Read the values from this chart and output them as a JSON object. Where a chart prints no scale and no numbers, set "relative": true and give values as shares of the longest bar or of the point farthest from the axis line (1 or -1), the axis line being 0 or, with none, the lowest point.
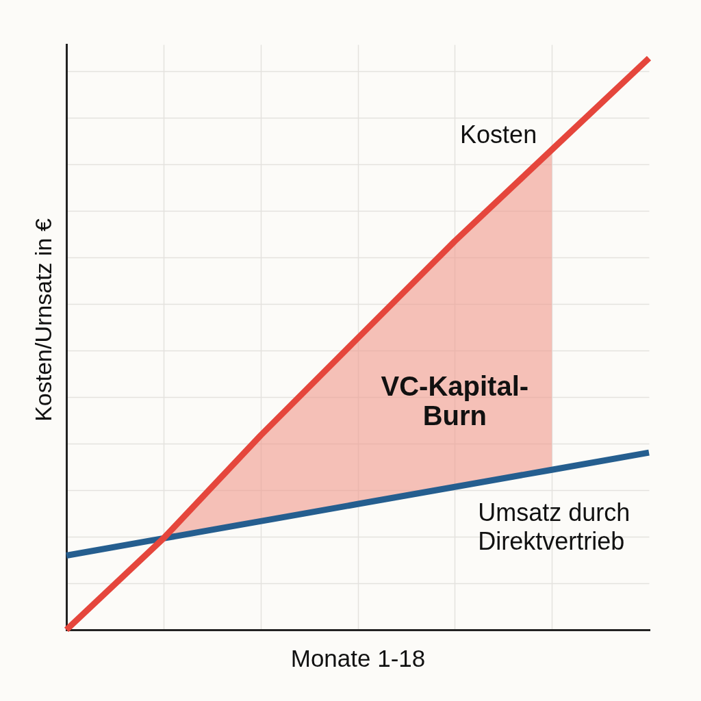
{
  "chart_data": {
    "type": "line",
    "xlabel": "Monate 1-18",
    "ylabel": "Kosten/Urnsatz in €",
    "relative": true,
    "grid": true,
    "categories": [
      null,
      null,
      null,
      null,
      null,
      null,
      null
    ],
    "series": [
      {
        "name": "Umsatz durch Direktvertrieb",
        "color": "#255e8f",
        "values": [
          0.13,
          0.16,
          0.19,
          0.22,
          0.25,
          0.28,
          0.31
        ]
      },
      {
        "name": "Kosten",
        "color": "#e5463c",
        "values": [
          0,
          0.16,
          0.34,
          0.51,
          0.68,
          0.84,
          1
        ]
      },
      {
        "name": "VC-Kapital-Burn",
        "type": "area",
        "color": "#f5c0b7",
        "values": [
          null,
          0.16,
          0.34,
          0.51,
          0.68,
          0.84,
          null
        ]
      }
    ]
  }
}
